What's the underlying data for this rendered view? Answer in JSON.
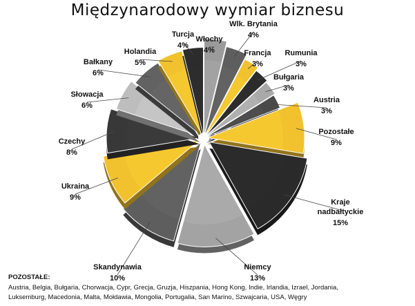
{
  "chart_data": {
    "type": "pie",
    "title": "Międzynarodowy wymiar biznesu",
    "slices": [
      {
        "label": "Włochy",
        "value": 4,
        "value_label": "4%",
        "color": "#9b9b9b"
      },
      {
        "label": "Wlk. Brytania",
        "value": 4,
        "value_label": "4%",
        "color": "#5e5e5e"
      },
      {
        "label": "Francja",
        "value": 3,
        "value_label": "3%",
        "color": "#f2c12e"
      },
      {
        "label": "Rumunia",
        "value": 3,
        "value_label": "3%",
        "color": "#2c2c2c"
      },
      {
        "label": "Bułgaria",
        "value": 3,
        "value_label": "3%",
        "color": "#a9a9a9"
      },
      {
        "label": "Austria",
        "value": 3,
        "value_label": "3%",
        "color": "#4a4a4a"
      },
      {
        "label": "Pozostałe",
        "value": 9,
        "value_label": "9%",
        "color": "#f2c12e"
      },
      {
        "label": "Kraje nadbałtyckie",
        "value": 15,
        "value_label": "15%",
        "color": "#2a2a2a"
      },
      {
        "label": "Niemcy",
        "value": 13,
        "value_label": "13%",
        "color": "#a3a3a3"
      },
      {
        "label": "Skandynawia",
        "value": 10,
        "value_label": "10%",
        "color": "#5e5e5e"
      },
      {
        "label": "Ukraina",
        "value": 9,
        "value_label": "9%",
        "color": "#f2c12e"
      },
      {
        "label": "Czechy",
        "value": 8,
        "value_label": "8%",
        "color": "#383838"
      },
      {
        "label": "Słowacja",
        "value": 6,
        "value_label": "6%",
        "color": "#bdbdbd"
      },
      {
        "label": "Bałkany",
        "value": 6,
        "value_label": "6%",
        "color": "#626262"
      },
      {
        "label": "Holandia",
        "value": 5,
        "value_label": "5%",
        "color": "#f2c12e"
      },
      {
        "label": "Turcja",
        "value": 4,
        "value_label": "4%",
        "color": "#2c2c2c"
      }
    ]
  },
  "footer": {
    "heading": "POZOSTAŁE:",
    "lines": [
      "Austria, Belgia, Bułgaria, Chorwacja, Cypr, Grecja, Gruzja, Hiszpania, Hong Kong, Indie, Irlandia, Izrael, Jordania,",
      "Luksemburg,  Macedonia, Malta, Mołdawia, Mongolia, Portugalia, San Marino, Szwajcaria, USA, Węgry"
    ]
  }
}
